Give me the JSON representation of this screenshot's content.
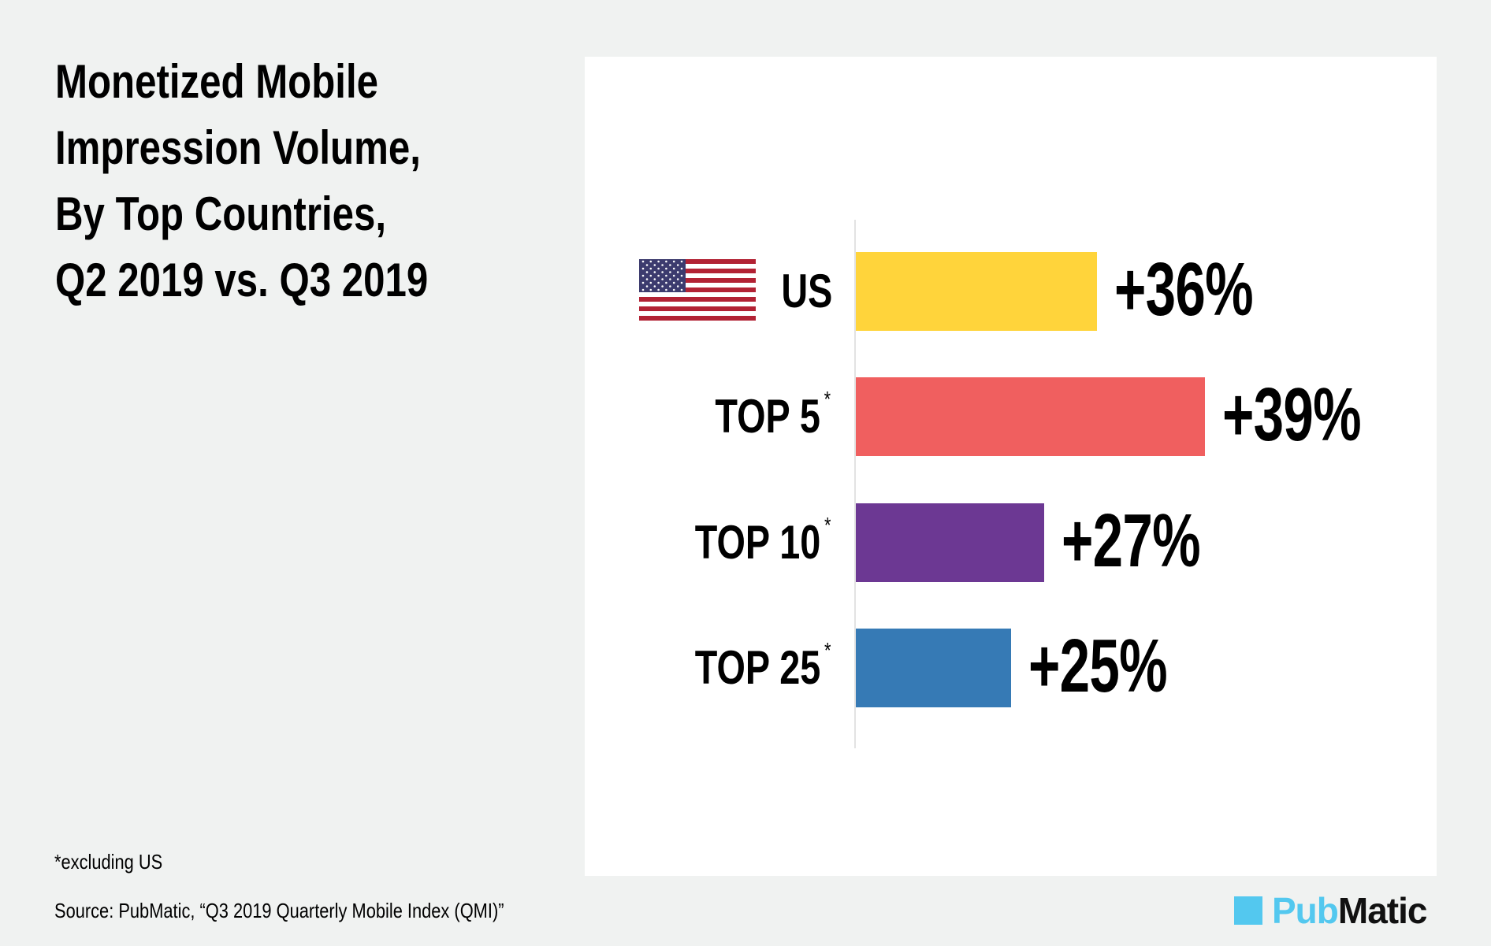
{
  "title_lines": [
    "Monetized Mobile",
    "Impression Volume,",
    "By Top Countries,",
    "Q2 2019 vs. Q3 2019"
  ],
  "footnote": "*excluding US",
  "source": "Source: PubMatic, “Q3 2019 Quarterly Mobile Index (QMI)”",
  "logo": {
    "part1": "Pub",
    "part2": "Matic",
    "icon": "square-logo-icon"
  },
  "colors": {
    "background": "#f0f2f1",
    "panel": "#ffffff",
    "brand": "#53c8ef"
  },
  "chart_data": {
    "type": "bar",
    "orientation": "horizontal",
    "title": "Monetized Mobile Impression Volume, By Top Countries, Q2 2019 vs. Q3 2019",
    "xlabel": "",
    "ylabel": "",
    "grid": false,
    "categories": [
      "US",
      "TOP 5",
      "TOP 10",
      "TOP 25"
    ],
    "category_marks": [
      "",
      "*",
      "*",
      "*"
    ],
    "category_icons": [
      "us-flag-icon",
      "",
      "",
      ""
    ],
    "values": [
      36,
      39,
      27,
      25
    ],
    "value_labels": [
      "+36%",
      "+39%",
      "+27%",
      "+25%"
    ],
    "unit": "% change",
    "bar_colors": [
      "#ffd43b",
      "#f05f5f",
      "#6c3893",
      "#367ab5"
    ],
    "annotation": "*excluding US"
  }
}
